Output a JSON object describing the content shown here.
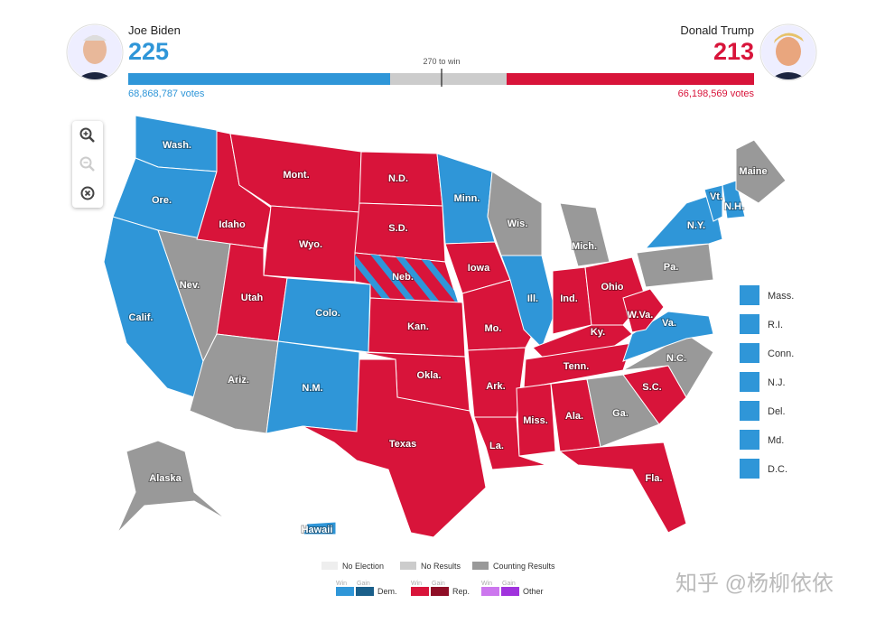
{
  "header": {
    "candidates": [
      {
        "name": "Joe Biden",
        "electoral": 225,
        "votes": "68,868,787 votes",
        "color": "#2f96d8"
      },
      {
        "name": "Donald Trump",
        "electoral": 213,
        "votes": "66,198,569 votes",
        "color": "#d8143a"
      }
    ],
    "threshold": "270 to win"
  },
  "map": {
    "states": [
      {
        "label": "Wash.",
        "color": "#2f96d8"
      },
      {
        "label": "Ore.",
        "color": "#2f96d8"
      },
      {
        "label": "Calif.",
        "color": "#2f96d8"
      },
      {
        "label": "Nev.",
        "color": "#999999"
      },
      {
        "label": "Idaho",
        "color": "#d8143a"
      },
      {
        "label": "Mont.",
        "color": "#d8143a"
      },
      {
        "label": "Wyo.",
        "color": "#d8143a"
      },
      {
        "label": "Utah",
        "color": "#d8143a"
      },
      {
        "label": "Colo.",
        "color": "#2f96d8"
      },
      {
        "label": "Ariz.",
        "color": "#999999"
      },
      {
        "label": "N.M.",
        "color": "#2f96d8"
      },
      {
        "label": "N.D.",
        "color": "#d8143a"
      },
      {
        "label": "S.D.",
        "color": "#d8143a"
      },
      {
        "label": "Neb.",
        "color": "#d8143a",
        "stripe_color": "#2f96d8"
      },
      {
        "label": "Kan.",
        "color": "#d8143a"
      },
      {
        "label": "Okla.",
        "color": "#d8143a"
      },
      {
        "label": "Texas",
        "color": "#d8143a"
      },
      {
        "label": "Minn.",
        "color": "#2f96d8"
      },
      {
        "label": "Iowa",
        "color": "#d8143a"
      },
      {
        "label": "Mo.",
        "color": "#d8143a"
      },
      {
        "label": "Ark.",
        "color": "#d8143a"
      },
      {
        "label": "La.",
        "color": "#d8143a"
      },
      {
        "label": "Wis.",
        "color": "#999999"
      },
      {
        "label": "Ill.",
        "color": "#2f96d8"
      },
      {
        "label": "Mich.",
        "color": "#999999"
      },
      {
        "label": "Ind.",
        "color": "#d8143a"
      },
      {
        "label": "Ohio",
        "color": "#d8143a"
      },
      {
        "label": "Ky.",
        "color": "#d8143a"
      },
      {
        "label": "Tenn.",
        "color": "#d8143a"
      },
      {
        "label": "Miss.",
        "color": "#d8143a"
      },
      {
        "label": "Ala.",
        "color": "#d8143a"
      },
      {
        "label": "Ga.",
        "color": "#999999"
      },
      {
        "label": "Fla.",
        "color": "#d8143a"
      },
      {
        "label": "S.C.",
        "color": "#d8143a"
      },
      {
        "label": "N.C.",
        "color": "#999999"
      },
      {
        "label": "Va.",
        "color": "#2f96d8"
      },
      {
        "label": "W.Va.",
        "color": "#d8143a"
      },
      {
        "label": "Pa.",
        "color": "#999999"
      },
      {
        "label": "N.Y.",
        "color": "#2f96d8"
      },
      {
        "label": "Vt.",
        "color": "#2f96d8"
      },
      {
        "label": "N.H.",
        "color": "#2f96d8"
      },
      {
        "label": "Maine",
        "color": "#999999"
      },
      {
        "label": "Alaska",
        "color": "#999999"
      },
      {
        "label": "Hawaii",
        "color": "#2f96d8"
      }
    ],
    "small_states": [
      {
        "label": "Mass.",
        "color": "#2f96d8"
      },
      {
        "label": "R.I.",
        "color": "#2f96d8"
      },
      {
        "label": "Conn.",
        "color": "#2f96d8"
      },
      {
        "label": "N.J.",
        "color": "#2f96d8"
      },
      {
        "label": "Del.",
        "color": "#2f96d8"
      },
      {
        "label": "Md.",
        "color": "#2f96d8"
      },
      {
        "label": "D.C.",
        "color": "#2f96d8"
      }
    ]
  },
  "legend": {
    "status": [
      {
        "label": "No Election",
        "color": "#eeeeee"
      },
      {
        "label": "No Results",
        "color": "#cccccc"
      },
      {
        "label": "Counting Results",
        "color": "#999999"
      }
    ],
    "parties": [
      {
        "win": "Win",
        "gain": "Gain",
        "name": "Dem.",
        "win_color": "#2f96d8",
        "gain_color": "#1a5f8a"
      },
      {
        "win": "Win",
        "gain": "Gain",
        "name": "Rep.",
        "win_color": "#d8143a",
        "gain_color": "#8f0e26"
      },
      {
        "win": "Win",
        "gain": "Gain",
        "name": "Other",
        "win_color": "#cc77ee",
        "gain_color": "#a033dd"
      }
    ]
  },
  "watermark": "知乎 @杨柳依依"
}
